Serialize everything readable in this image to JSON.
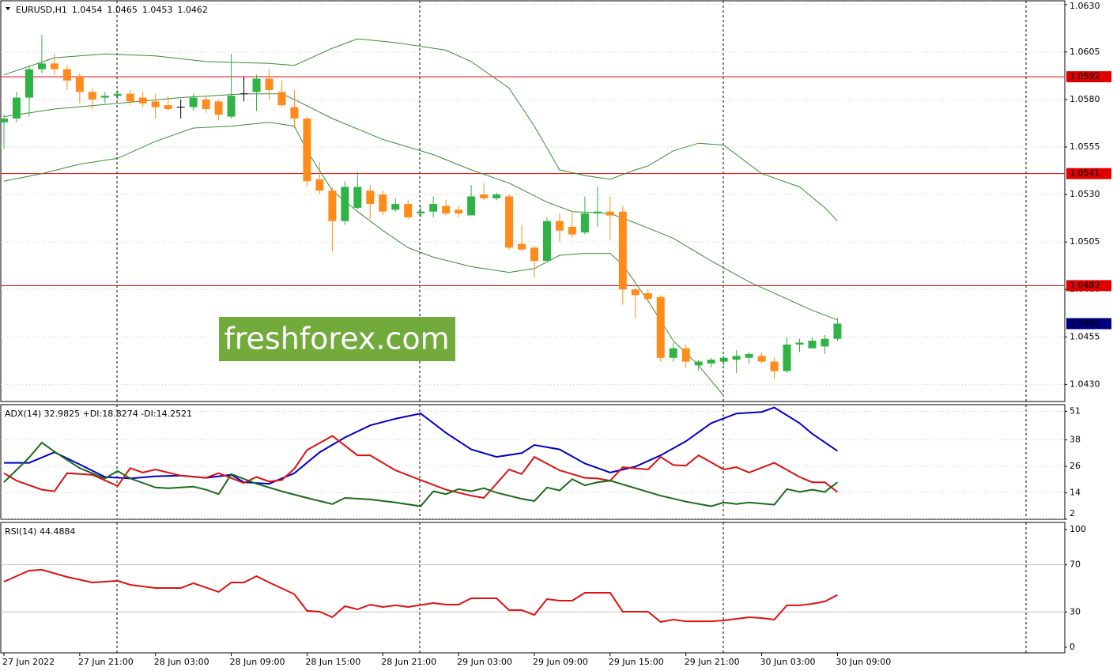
{
  "chart_data": [
    {
      "type": "candlestick",
      "title": "EURUSD,H1",
      "watermark": "freshforex.com",
      "xlim": [
        -0.25,
        84
      ],
      "xticks": [
        {
          "value": 0,
          "label": "27 Jun 2022"
        },
        {
          "value": 6,
          "label": "27 Jun 21:00"
        },
        {
          "value": 12,
          "label": "28 Jun 03:00"
        },
        {
          "value": 18,
          "label": "28 Jun 09:00"
        },
        {
          "value": 24,
          "label": "28 Jun 15:00"
        },
        {
          "value": 30,
          "label": "28 Jun 21:00"
        },
        {
          "value": 36,
          "label": "29 Jun 03:00"
        },
        {
          "value": 42,
          "label": "29 Jun 09:00"
        },
        {
          "value": 48,
          "label": "29 Jun 15:00"
        },
        {
          "value": 54,
          "label": "29 Jun 21:00"
        },
        {
          "value": 60,
          "label": "30 Jun 03:00"
        },
        {
          "value": 66,
          "label": "30 Jun 09:00"
        }
      ],
      "ylim": [
        1.0421,
        1.0632
      ],
      "yticks": [
        {
          "value": 1.063,
          "label": "1.0630"
        },
        1.0605,
        {
          "value": 1.058,
          "label": "1.0580"
        },
        1.0555,
        {
          "value": 1.053,
          "label": "1.0530"
        },
        1.0505,
        {
          "value": 1.048,
          "label": "1.0480"
        },
        1.0455,
        {
          "value": 1.043,
          "label": "1.0430"
        }
      ],
      "grid": true,
      "colors": {
        "up": "#2fb344",
        "down": "#ff8c1a",
        "doji": "#000000",
        "level": "#e00000",
        "last": "#000080"
      },
      "open": [
        1.0568,
        1.057,
        1.0581,
        1.0596,
        1.0599,
        1.0596,
        1.0592,
        1.0584,
        1.0581,
        1.0582,
        1.0583,
        1.0581,
        1.0579,
        1.0577,
        1.0576,
        1.0576,
        1.058,
        1.0579,
        1.0571,
        1.0583,
        1.0584,
        1.0591,
        1.0584,
        1.0576,
        1.057,
        1.0538,
        1.0532,
        1.0516,
        1.0523,
        1.0532,
        1.053,
        1.0522,
        1.0525,
        1.052,
        1.0521,
        1.0524,
        1.0522,
        1.0519,
        1.053,
        1.0528,
        1.0529,
        1.0504,
        1.0502,
        1.0495,
        1.0516,
        1.0513,
        1.051,
        1.052,
        1.0521,
        1.0521,
        1.048,
        1.0478,
        1.0476,
        1.0444,
        1.0449,
        1.044,
        1.0441,
        1.0442,
        1.0443,
        1.0444,
        1.0445,
        1.0442,
        1.0437,
        1.0451,
        1.0449,
        1.045,
        1.0454
      ],
      "high": [
        1.0572,
        1.0584,
        1.0598,
        1.0614,
        1.0604,
        1.0598,
        1.0594,
        1.0586,
        1.0584,
        1.0585,
        1.0585,
        1.0584,
        1.0583,
        1.0582,
        1.058,
        1.0583,
        1.0582,
        1.058,
        1.0604,
        1.0592,
        1.0593,
        1.0596,
        1.059,
        1.0585,
        1.0571,
        1.0547,
        1.0534,
        1.0537,
        1.0542,
        1.0535,
        1.0532,
        1.0528,
        1.0527,
        1.0524,
        1.0529,
        1.0527,
        1.0524,
        1.0535,
        1.0536,
        1.0531,
        1.053,
        1.0514,
        1.0503,
        1.0518,
        1.052,
        1.0521,
        1.0529,
        1.0534,
        1.0529,
        1.0524,
        1.0481,
        1.048,
        1.0477,
        1.0452,
        1.0451,
        1.0443,
        1.0444,
        1.0445,
        1.0448,
        1.0447,
        1.0447,
        1.0444,
        1.0455,
        1.0454,
        1.0455,
        1.0456,
        1.0465
      ],
      "low": [
        1.0554,
        1.0568,
        1.0571,
        1.0594,
        1.0593,
        1.0585,
        1.0578,
        1.0575,
        1.0578,
        1.058,
        1.0577,
        1.0576,
        1.057,
        1.0574,
        1.057,
        1.0574,
        1.0573,
        1.0569,
        1.057,
        1.0579,
        1.0574,
        1.058,
        1.0576,
        1.0565,
        1.0534,
        1.053,
        1.05,
        1.0514,
        1.0522,
        1.0517,
        1.0519,
        1.0521,
        1.0517,
        1.0518,
        1.0518,
        1.0519,
        1.0518,
        1.0519,
        1.0527,
        1.0527,
        1.0501,
        1.05,
        1.0486,
        1.0495,
        1.0505,
        1.0507,
        1.0509,
        1.0513,
        1.0506,
        1.0472,
        1.0465,
        1.0473,
        1.0442,
        1.0442,
        1.0439,
        1.0437,
        1.0439,
        1.044,
        1.0436,
        1.0441,
        1.0441,
        1.0433,
        1.0436,
        1.0447,
        1.0449,
        1.0446,
        1.0453
      ],
      "close": [
        1.057,
        1.0581,
        1.0596,
        1.0599,
        1.0596,
        1.059,
        1.0584,
        1.058,
        1.0582,
        1.0583,
        1.0579,
        1.0578,
        1.0576,
        1.0575,
        1.0576,
        1.0581,
        1.0575,
        1.0572,
        1.0582,
        1.0583,
        1.0591,
        1.0585,
        1.0577,
        1.057,
        1.0537,
        1.0532,
        1.0516,
        1.0534,
        1.0534,
        1.0525,
        1.0521,
        1.0525,
        1.0518,
        1.0521,
        1.0525,
        1.052,
        1.052,
        1.0529,
        1.0528,
        1.053,
        1.0502,
        1.0501,
        1.0495,
        1.0516,
        1.0511,
        1.0509,
        1.052,
        1.0521,
        1.0519,
        1.048,
        1.0477,
        1.0475,
        1.0444,
        1.0449,
        1.0442,
        1.0442,
        1.0443,
        1.0444,
        1.0445,
        1.0446,
        1.0442,
        1.0437,
        1.0451,
        1.0452,
        1.0453,
        1.0454,
        1.0462
      ],
      "series": [
        {
          "color": "#3a8a3a",
          "x": [
            0,
            4,
            8,
            12,
            16,
            21,
            23,
            26,
            28,
            31,
            35,
            37,
            40,
            42,
            44,
            46,
            48,
            50,
            51,
            53,
            55,
            57,
            58,
            60,
            63,
            65,
            66
          ],
          "values": [
            1.0593,
            1.0602,
            1.0604,
            1.0603,
            1.06,
            1.0599,
            1.0598,
            1.0607,
            1.0612,
            1.061,
            1.0606,
            1.06,
            1.0586,
            1.0566,
            1.0543,
            1.054,
            1.0538,
            1.0543,
            1.0545,
            1.0553,
            1.0557,
            1.0556,
            1.0551,
            1.0541,
            1.0534,
            1.0523,
            1.0516
          ]
        },
        {
          "color": "#3a8a3a",
          "x": [
            0,
            4,
            9,
            14,
            19,
            22,
            23,
            26,
            30,
            34,
            37,
            40,
            43,
            45,
            48,
            50,
            53,
            56,
            59,
            62,
            64,
            66
          ],
          "values": [
            1.0571,
            1.0575,
            1.0578,
            1.0581,
            1.0583,
            1.0583,
            1.058,
            1.057,
            1.0559,
            1.0551,
            1.0543,
            1.0536,
            1.0526,
            1.0521,
            1.052,
            1.0515,
            1.0507,
            1.0495,
            1.0484,
            1.0475,
            1.0469,
            1.0464
          ]
        },
        {
          "color": "#3a8a3a",
          "x": [
            0,
            3,
            6,
            9,
            12,
            15,
            18,
            21,
            23,
            24,
            26,
            28,
            30,
            32,
            34,
            37,
            40,
            42,
            44,
            46,
            48,
            49,
            51,
            53,
            55,
            57
          ],
          "values": [
            1.0537,
            1.0541,
            1.0546,
            1.0549,
            1.0558,
            1.0565,
            1.0566,
            1.0568,
            1.0566,
            1.0553,
            1.0532,
            1.0521,
            1.0511,
            1.0502,
            1.0497,
            1.0492,
            1.0489,
            1.0491,
            1.0498,
            1.0499,
            1.0499,
            1.0493,
            1.0474,
            1.0453,
            1.044,
            1.0424
          ]
        }
      ],
      "levels": [
        1.0592,
        1.0541,
        1.0482
      ]
    },
    {
      "type": "line",
      "title": "ADX(14) 32.9825 +DI:18.8274 -DI:14.2521",
      "xlim": [
        -0.25,
        84
      ],
      "ylim": [
        2,
        54
      ],
      "yticks": [
        51,
        38,
        26,
        14,
        2
      ],
      "grid": true,
      "series": [
        {
          "color": "#0000c8",
          "x": [
            0,
            2,
            4,
            6,
            8,
            10,
            12,
            14,
            16,
            18,
            19,
            21,
            23,
            25,
            27,
            29,
            31,
            33,
            35,
            37,
            39,
            41,
            42,
            44,
            46,
            48,
            50,
            52,
            54,
            56,
            58,
            60,
            61,
            63,
            64,
            66
          ],
          "values": [
            27.6,
            27.6,
            32.4,
            26.9,
            21.2,
            20.5,
            21.5,
            21.8,
            20.8,
            22.2,
            18.8,
            18.1,
            22.9,
            32.4,
            39.1,
            44.6,
            47.6,
            50.0,
            41.2,
            33.7,
            30.3,
            32.0,
            35.7,
            33.7,
            27.3,
            23.2,
            25.9,
            31.0,
            37.4,
            45.6,
            50.0,
            50.7,
            52.7,
            45.6,
            40.8,
            33.0
          ]
        },
        {
          "color": "#dd1111",
          "x": [
            0,
            1,
            3,
            4,
            5,
            7,
            9,
            10,
            11,
            12,
            14,
            16,
            17,
            19,
            20,
            21,
            22,
            23,
            24,
            26,
            28,
            29,
            31,
            33,
            35,
            37,
            38,
            40,
            41,
            42,
            44,
            46,
            47,
            48,
            49,
            51,
            52,
            53,
            54,
            55,
            57,
            58,
            59,
            61,
            63,
            64,
            65,
            66
          ],
          "values": [
            22.9,
            19.5,
            15.4,
            14.7,
            22.9,
            22.2,
            17.1,
            25.2,
            23.2,
            24.6,
            21.8,
            20.8,
            22.9,
            18.5,
            21.2,
            19.1,
            19.8,
            24.9,
            33.4,
            39.8,
            31.0,
            31.0,
            24.2,
            19.8,
            15.4,
            12.7,
            11.7,
            24.6,
            22.5,
            30.3,
            24.2,
            20.8,
            20.5,
            19.5,
            25.6,
            24.6,
            30.3,
            26.6,
            26.3,
            31.0,
            24.6,
            25.6,
            23.2,
            27.6,
            21.2,
            18.8,
            18.8,
            14.3
          ]
        },
        {
          "color": "#1a6b1a",
          "x": [
            0,
            2,
            3,
            4,
            6,
            8,
            9,
            10,
            12,
            13,
            15,
            16,
            17,
            18,
            20,
            22,
            24,
            26,
            27,
            29,
            31,
            33,
            34,
            35,
            36,
            37,
            38,
            39,
            41,
            42,
            43,
            44,
            45,
            46,
            47,
            48,
            50,
            52,
            54,
            56,
            57,
            58,
            59,
            61,
            62,
            63,
            64,
            65,
            66
          ],
          "values": [
            18.8,
            30.0,
            36.8,
            32.7,
            25.2,
            20.5,
            23.9,
            20.5,
            16.4,
            16.1,
            16.8,
            15.4,
            13.4,
            22.5,
            18.1,
            14.7,
            11.7,
            8.9,
            11.7,
            11.0,
            9.6,
            7.9,
            14.7,
            13.4,
            15.7,
            14.7,
            16.1,
            14.1,
            11.3,
            10.3,
            16.4,
            15.1,
            20.2,
            17.4,
            18.8,
            19.5,
            16.1,
            12.7,
            10.0,
            7.9,
            9.6,
            8.9,
            9.6,
            8.6,
            15.7,
            14.4,
            15.4,
            14.4,
            18.8
          ]
        }
      ]
    },
    {
      "type": "line",
      "title": "RSI(14) 44.4884",
      "xlim": [
        -0.25,
        84
      ],
      "ylim": [
        -4.7,
        106
      ],
      "yticks": [
        100,
        70,
        30,
        0
      ],
      "levels": [
        70,
        30
      ],
      "level_color": "#c0c0c0",
      "series": [
        {
          "color": "#e01010",
          "x": [
            0,
            2,
            3,
            5,
            7,
            9,
            10,
            12,
            14,
            15,
            17,
            18,
            19,
            20,
            21,
            23,
            24,
            25,
            26,
            27,
            28,
            29,
            30,
            31,
            32,
            34,
            35,
            36,
            37,
            39,
            40,
            41,
            42,
            43,
            44,
            45,
            46,
            48,
            49,
            51,
            52,
            53,
            54,
            56,
            57,
            59,
            60,
            61,
            62,
            63,
            64,
            65,
            66
          ],
          "values": [
            55.7,
            65.1,
            65.8,
            59.7,
            55.0,
            56.4,
            53.0,
            50.3,
            50.3,
            54.4,
            47.0,
            55.0,
            55.0,
            60.4,
            55.0,
            45.0,
            30.9,
            30.2,
            25.5,
            34.9,
            32.2,
            36.2,
            34.2,
            35.6,
            34.2,
            37.6,
            36.2,
            36.2,
            41.6,
            41.6,
            31.5,
            31.5,
            27.5,
            40.9,
            39.6,
            39.6,
            46.3,
            46.3,
            30.2,
            30.2,
            21.5,
            23.5,
            22.1,
            22.1,
            22.8,
            25.5,
            24.8,
            23.5,
            35.6,
            35.6,
            36.9,
            38.9,
            44.5
          ]
        }
      ]
    }
  ]
}
